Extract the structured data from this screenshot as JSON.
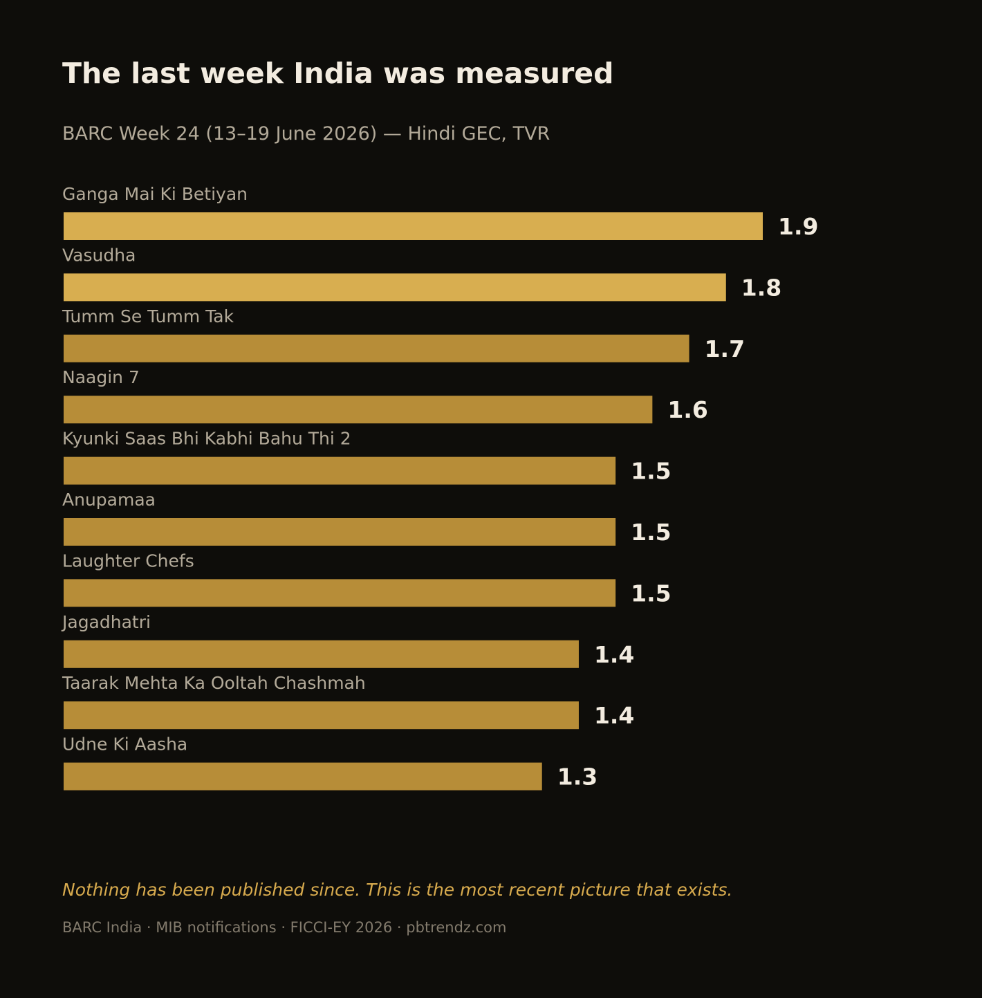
{
  "colors": {
    "background": "#0e0d0a",
    "highlight_bar": "#d8ae50",
    "bar": "#b78d38",
    "title": "#f3ece0",
    "label": "#b3aa99",
    "note": "#d8ab4e",
    "source": "#837b6d"
  },
  "chart_data": {
    "type": "bar",
    "orientation": "horizontal",
    "title": "The last week India was measured",
    "subtitle": "BARC Week 24 (13–19 June 2026) — Hindi GEC, TVR",
    "categories": [
      "Ganga Mai Ki Betiyan",
      "Vasudha",
      "Tumm Se Tumm Tak",
      "Naagin 7",
      "Kyunki Saas Bhi Kabhi Bahu Thi 2",
      "Anupamaa",
      "Laughter Chefs",
      "Jagadhatri",
      "Taarak Mehta Ka Ooltah Chashmah",
      "Udne Ki Aasha"
    ],
    "values": [
      1.9,
      1.8,
      1.7,
      1.6,
      1.5,
      1.5,
      1.5,
      1.4,
      1.4,
      1.3
    ],
    "value_labels": [
      "1.9",
      "1.8",
      "1.7",
      "1.6",
      "1.5",
      "1.5",
      "1.5",
      "1.4",
      "1.4",
      "1.3"
    ],
    "highlighted_top": 2,
    "xlim": [
      0,
      1.9
    ],
    "grid": false,
    "legend": "none"
  },
  "footer": {
    "note": "Nothing has been published since. This is the most recent picture that exists.",
    "source": "BARC India · MIB notifications · FICCI-EY 2026 · pbtrendz.com"
  }
}
